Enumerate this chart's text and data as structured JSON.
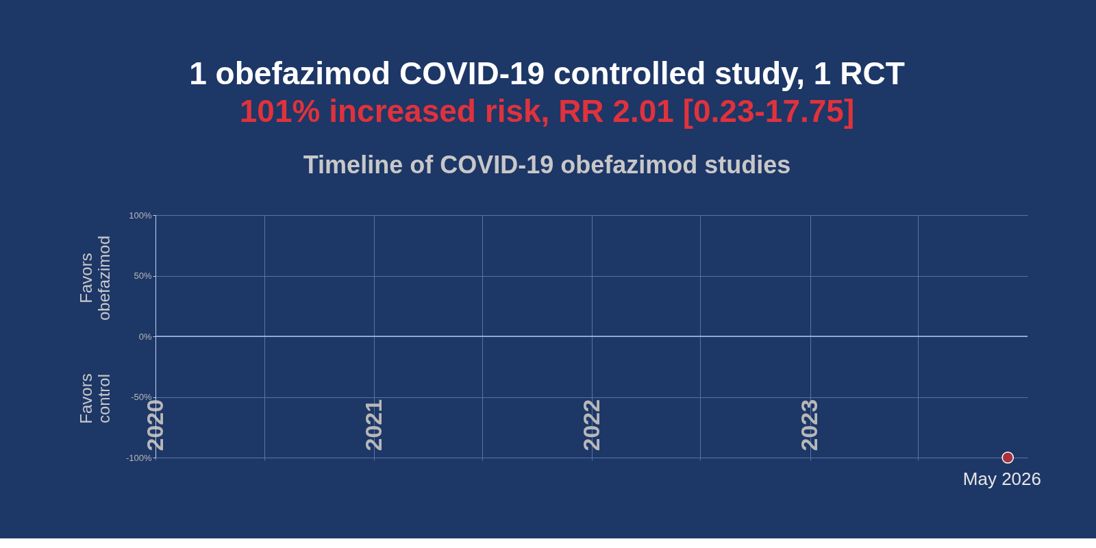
{
  "chart_data": {
    "type": "scatter",
    "title": "1 obefazimod COVID-19 controlled study, 1 RCT",
    "subtitle": "101% increased risk, RR 2.01 [0.23-17.75]",
    "annotations": [
      "Timeline of COVID-19 obefazimod studies",
      "Favors obefazimod",
      "Favors control",
      "May 2026"
    ],
    "x": [
      "2023-11-28"
    ],
    "series": [
      {
        "color": "#a8323e",
        "values": [
          -100
        ]
      }
    ],
    "xlim": [
      "2020-01-01",
      "2023-12-31"
    ],
    "xticks": [
      {
        "value": "2020-01-01",
        "label": "2020"
      },
      {
        "value": "2020-07-01",
        "label": null
      },
      {
        "value": "2021-01-01",
        "label": "2021"
      },
      {
        "value": "2021-07-01",
        "label": null
      },
      {
        "value": "2022-01-01",
        "label": "2022"
      },
      {
        "value": "2022-07-01",
        "label": null
      },
      {
        "value": "2023-01-01",
        "label": "2023"
      },
      {
        "value": "2023-07-01",
        "label": null
      }
    ],
    "ylim": [
      -100,
      100
    ],
    "yticks": [
      {
        "value": -100,
        "label": "-100%"
      },
      {
        "value": -50,
        "label": "-50%"
      },
      {
        "value": 0,
        "label": "0%"
      },
      {
        "value": 50,
        "label": "50%"
      },
      {
        "value": 100,
        "label": "100%"
      }
    ],
    "ref_lines": [
      {
        "axis": "y",
        "value": 0,
        "color": "#a9c4f5"
      }
    ],
    "grid": true,
    "legend": false,
    "marker": "circle"
  }
}
